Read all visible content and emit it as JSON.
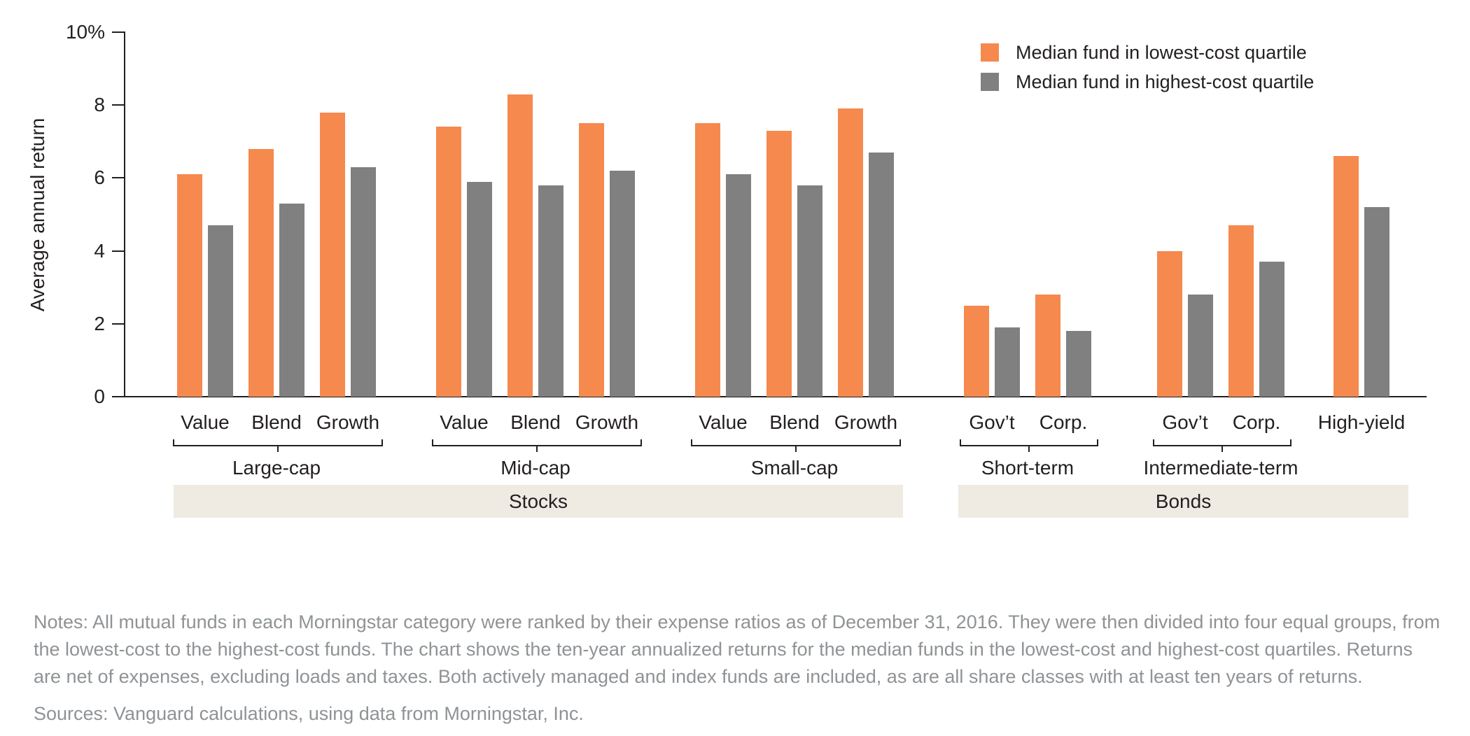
{
  "legend": {
    "items": [
      {
        "label": "Median fund in lowest-cost quartile",
        "color": "#F5894E"
      },
      {
        "label": "Median fund in highest-cost quartile",
        "color": "#808080"
      }
    ]
  },
  "chart_data": {
    "type": "bar",
    "ylabel": "Average annual return",
    "ylim": [
      0,
      10
    ],
    "grid": false,
    "legend_position": "top-right",
    "yticks": [
      {
        "value": 0,
        "label": "0"
      },
      {
        "value": 2,
        "label": "2"
      },
      {
        "value": 4,
        "label": "4"
      },
      {
        "value": 6,
        "label": "6"
      },
      {
        "value": 8,
        "label": "8"
      },
      {
        "value": 10,
        "label": "10%"
      }
    ],
    "series_names": [
      "Median fund in lowest-cost quartile",
      "Median fund in highest-cost quartile"
    ],
    "sections": [
      {
        "label": "Stocks"
      },
      {
        "label": "Bonds"
      }
    ],
    "groups": [
      {
        "label": "Large-cap",
        "section": "Stocks",
        "bars": [
          {
            "category": "Value",
            "lowest_cost": 6.1,
            "highest_cost": 4.7
          },
          {
            "category": "Blend",
            "lowest_cost": 6.8,
            "highest_cost": 5.3
          },
          {
            "category": "Growth",
            "lowest_cost": 7.8,
            "highest_cost": 6.3
          }
        ]
      },
      {
        "label": "Mid-cap",
        "section": "Stocks",
        "bars": [
          {
            "category": "Value",
            "lowest_cost": 7.4,
            "highest_cost": 5.9
          },
          {
            "category": "Blend",
            "lowest_cost": 8.3,
            "highest_cost": 5.8
          },
          {
            "category": "Growth",
            "lowest_cost": 7.5,
            "highest_cost": 6.2
          }
        ]
      },
      {
        "label": "Small-cap",
        "section": "Stocks",
        "bars": [
          {
            "category": "Value",
            "lowest_cost": 7.5,
            "highest_cost": 6.1
          },
          {
            "category": "Blend",
            "lowest_cost": 7.3,
            "highest_cost": 5.8
          },
          {
            "category": "Growth",
            "lowest_cost": 7.9,
            "highest_cost": 6.7
          }
        ]
      },
      {
        "label": "Short-term",
        "section": "Bonds",
        "bars": [
          {
            "category": "Gov’t",
            "lowest_cost": 2.5,
            "highest_cost": 1.9
          },
          {
            "category": "Corp.",
            "lowest_cost": 2.8,
            "highest_cost": 1.8
          }
        ]
      },
      {
        "label": "Intermediate-term",
        "section": "Bonds",
        "bars": [
          {
            "category": "Gov’t",
            "lowest_cost": 4.0,
            "highest_cost": 2.8
          },
          {
            "category": "Corp.",
            "lowest_cost": 4.7,
            "highest_cost": 3.7
          }
        ]
      },
      {
        "label": "",
        "section": "Bonds",
        "bars": [
          {
            "category": "High-yield",
            "lowest_cost": 6.6,
            "highest_cost": 5.2
          }
        ]
      }
    ]
  },
  "notes": "Notes: All mutual funds in each Morningstar category were ranked by their expense ratios as of December 31, 2016. They were then divided into four equal groups, from the lowest-cost to the highest-cost funds. The chart shows the ten-year annualized returns for the median funds in the lowest-cost and highest-cost quartiles. Returns are net of expenses, excluding loads and taxes. Both actively managed and index funds are included, as are all share classes with at least ten years of returns.",
  "sources": "Sources: Vanguard calculations, using data from Morningstar, Inc.",
  "colors": {
    "lowest_cost": "#F5894E",
    "highest_cost": "#808080",
    "section_band": "#EFEAE2",
    "axis": "#231F20",
    "text": "#231F20",
    "notes_text": "#8F9396"
  }
}
